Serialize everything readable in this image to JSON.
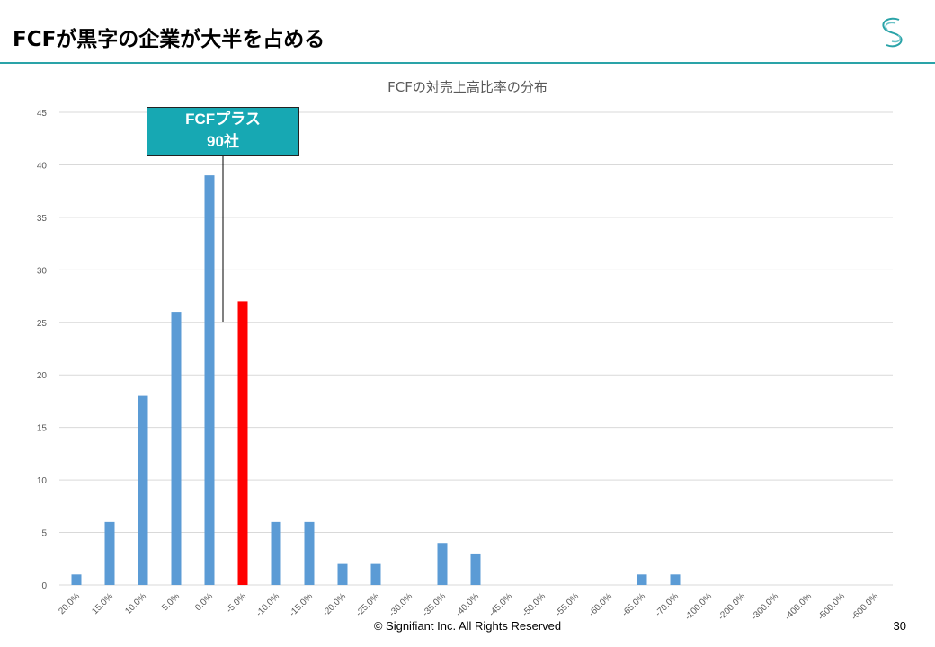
{
  "slide": {
    "title": "FCFが黒字の企業が大半を占める",
    "footer": "© Signifiant Inc. All Rights Reserved",
    "page_number": "30"
  },
  "callout": {
    "line1": "FCFプラス",
    "line2": "90社"
  },
  "chart_data": {
    "type": "bar",
    "title": "FCFの対売上高比率の分布",
    "categories": [
      "20.0%",
      "15.0%",
      "10.0%",
      "5.0%",
      "0.0%",
      "-5.0%",
      "-10.0%",
      "-15.0%",
      "-20.0%",
      "-25.0%",
      "-30.0%",
      "-35.0%",
      "-40.0%",
      "-45.0%",
      "-50.0%",
      "-55.0%",
      "-60.0%",
      "-65.0%",
      "-70.0%",
      "-100.0%",
      "-200.0%",
      "-300.0%",
      "-400.0%",
      "-500.0%",
      "-600.0%"
    ],
    "values": [
      1,
      6,
      18,
      26,
      39,
      27,
      6,
      6,
      2,
      2,
      0,
      4,
      3,
      0,
      0,
      0,
      0,
      1,
      1,
      0,
      0,
      0,
      0,
      0,
      0
    ],
    "highlight_category": "-5.0%",
    "colors": {
      "bar": "#5b9bd5",
      "highlight": "#ff0000",
      "grid": "#d9d9d9",
      "callout": "#17a8b3",
      "rule": "#2aa3a8"
    },
    "ylim": [
      0,
      45
    ],
    "yticks": [
      0,
      5,
      10,
      15,
      20,
      25,
      30,
      35,
      40,
      45
    ],
    "grid": true,
    "xlabel": "",
    "ylabel": ""
  }
}
